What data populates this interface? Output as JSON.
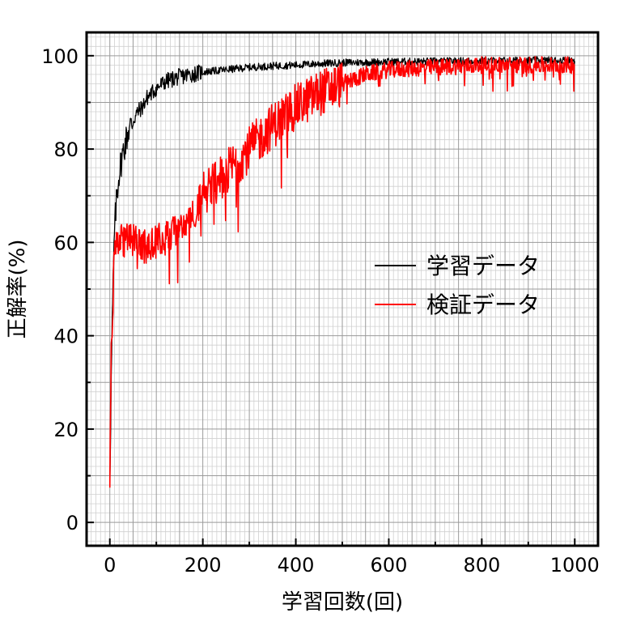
{
  "chart_data": {
    "type": "line",
    "title": "",
    "xlabel": "学習回数(回)",
    "ylabel": "正解率(%)",
    "xlim": [
      -50,
      1050
    ],
    "ylim": [
      -5,
      105
    ],
    "xticks": [
      0,
      200,
      400,
      600,
      800,
      1000
    ],
    "yticks": [
      0,
      20,
      40,
      60,
      80,
      100
    ],
    "xtick_labels": [
      "0",
      "200",
      "400",
      "600",
      "800",
      "1000"
    ],
    "ytick_labels": [
      "0",
      "20",
      "40",
      "60",
      "80",
      "100"
    ],
    "grid": true,
    "legend_position": "center-right",
    "series": [
      {
        "name": "学習データ",
        "color": "#000000",
        "x": [
          0,
          3,
          5,
          8,
          10,
          15,
          20,
          30,
          40,
          50,
          60,
          70,
          80,
          100,
          120,
          150,
          200,
          250,
          300,
          350,
          400,
          450,
          500,
          600,
          700,
          800,
          900,
          1000
        ],
        "y": [
          10,
          30,
          42,
          55,
          62,
          70,
          75,
          80,
          84,
          86,
          88,
          89,
          91,
          93,
          94.5,
          95.5,
          96.5,
          97,
          97.5,
          97.8,
          98,
          98.3,
          98.5,
          98.7,
          98.8,
          98.9,
          99,
          99
        ]
      },
      {
        "name": "検証データ",
        "color": "#ff0000",
        "x": [
          0,
          3,
          5,
          8,
          10,
          15,
          20,
          40,
          60,
          80,
          100,
          120,
          150,
          180,
          200,
          250,
          300,
          350,
          400,
          450,
          500,
          550,
          600,
          700,
          800,
          900,
          1000
        ],
        "y": [
          10,
          35,
          42,
          52,
          58,
          60,
          60,
          61,
          60,
          59,
          60,
          61,
          63,
          66,
          70,
          75,
          80,
          85,
          89,
          92,
          94,
          96,
          97,
          97.5,
          98,
          98,
          98
        ]
      }
    ]
  }
}
